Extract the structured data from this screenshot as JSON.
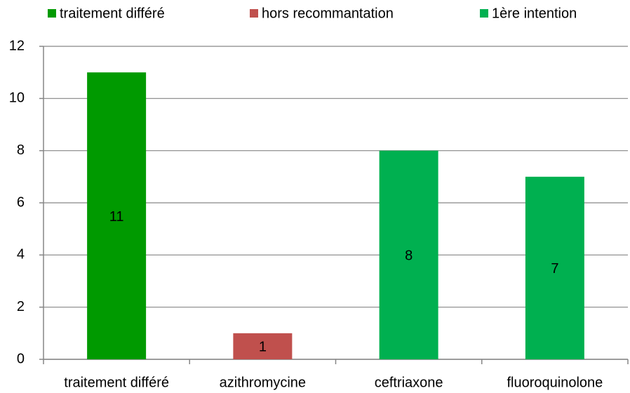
{
  "chart_data": {
    "type": "bar",
    "stacked": true,
    "categories": [
      "traitement différé",
      "azithromycine",
      "ceftriaxone",
      "fluoroquinolone"
    ],
    "series": [
      {
        "name": "traitement différé",
        "color": "#009a00",
        "values": [
          11,
          null,
          null,
          null
        ]
      },
      {
        "name": "hors recommantation",
        "color": "#c0504d",
        "values": [
          null,
          1,
          null,
          null
        ]
      },
      {
        "name": "1ère intention",
        "color": "#00b050",
        "values": [
          null,
          null,
          8,
          7
        ]
      }
    ],
    "ylim": [
      0,
      12
    ],
    "yticks": [
      0,
      2,
      4,
      6,
      8,
      10,
      12
    ],
    "grid": true,
    "legend": "top"
  }
}
